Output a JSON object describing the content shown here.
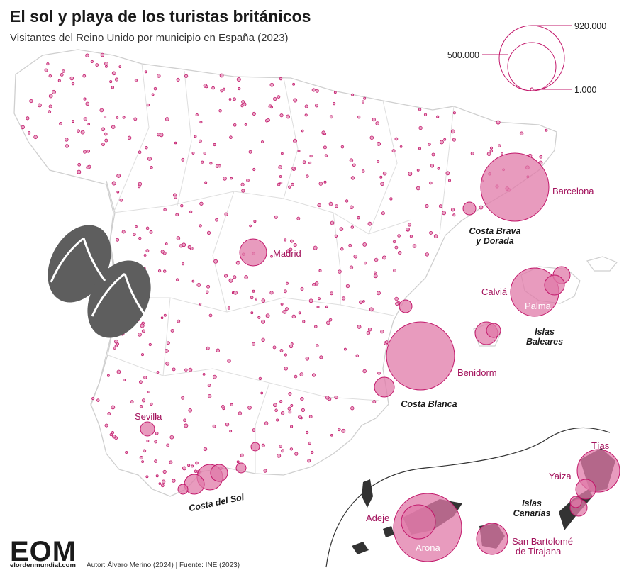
{
  "title": "El sol y playa de los turistas británicos",
  "subtitle": "Visitantes del Reino Unido por municipio en España (2023)",
  "legend": {
    "values": [
      "920.000",
      "500.000",
      "1.000"
    ]
  },
  "colors": {
    "bubble_fill": "#e07aa8",
    "bubble_stroke": "#c2186b",
    "dot": "#c2186b",
    "label_city": "#a3125c",
    "border": "#d7d7d7",
    "sandals": "#606060"
  },
  "city_labels": {
    "barcelona": "Barcelona",
    "madrid": "Madrid",
    "calvia": "Calviá",
    "palma": "Palma",
    "benidorm": "Benidorm",
    "sevilla": "Sevilla",
    "adeje": "Adeje",
    "arona": "Arona",
    "tias": "Tías",
    "yaiza": "Yaiza",
    "san_bartolome_1": "San Bartolomé",
    "san_bartolome_2": "de Tirajana"
  },
  "region_labels": {
    "costa_brava_1": "Costa Brava",
    "costa_brava_2": "y Dorada",
    "islas_baleares_1": "Islas",
    "islas_baleares_2": "Baleares",
    "costa_blanca": "Costa Blanca",
    "costa_del_sol": "Costa del Sol",
    "islas_canarias_1": "Islas",
    "islas_canarias_2": "Canarias"
  },
  "footer": {
    "logo": "EOM",
    "site": "elordenmundial.com",
    "credits": "Autor: Álvaro Merino (2024) | Fuente: INE (2023)"
  },
  "decoration": {
    "icon": "flip-flops-icon"
  }
}
